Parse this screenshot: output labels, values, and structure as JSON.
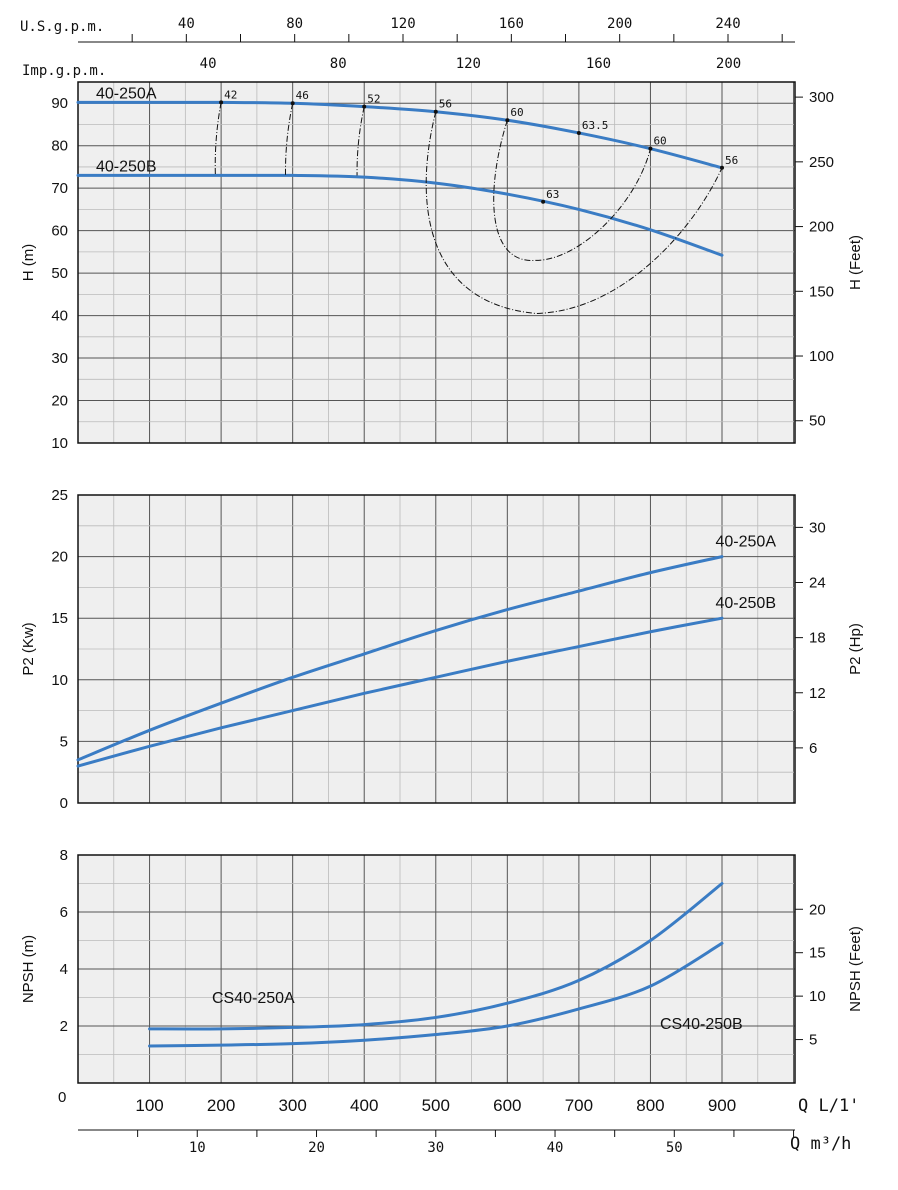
{
  "top_axes": {
    "usgpm": {
      "label": "U.S.g.p.m.",
      "ticks": [
        40,
        80,
        120,
        160,
        200,
        240
      ]
    },
    "impgpm": {
      "label": "Imp.g.p.m.",
      "ticks": [
        40,
        80,
        120,
        160,
        200
      ]
    }
  },
  "bottom_axes": {
    "ql": {
      "label": "Q L/1'",
      "origin_label": "0",
      "ticks": [
        100,
        200,
        300,
        400,
        500,
        600,
        700,
        800,
        900
      ]
    },
    "qm3h": {
      "label": "Q m³/h",
      "ticks": [
        10,
        20,
        30,
        40,
        50
      ]
    }
  },
  "colors": {
    "curve": "#3a7cc4",
    "grid_major": "#555555",
    "grid_minor": "#bbbbbb",
    "panel_bg": "#efefef"
  },
  "chart_data": [
    {
      "type": "line",
      "name": "head",
      "ylabel": "H (m)",
      "ylabel_right": "H (Feet)",
      "xlim": [
        0,
        1000
      ],
      "ylim": [
        10,
        95
      ],
      "yticks": [
        10,
        20,
        30,
        40,
        50,
        60,
        70,
        80,
        90
      ],
      "yticks_right": [
        50,
        100,
        150,
        200,
        250,
        300
      ],
      "series": [
        {
          "name": "40-250A",
          "x": [
            0,
            100,
            200,
            300,
            400,
            500,
            600,
            700,
            800,
            900
          ],
          "y": [
            90.2,
            90.2,
            90.2,
            90.0,
            89.2,
            88.0,
            86.0,
            83.0,
            79.3,
            74.8
          ]
        },
        {
          "name": "40-250B",
          "x": [
            0,
            100,
            200,
            300,
            400,
            500,
            600,
            700,
            800,
            900
          ],
          "y": [
            73.0,
            73.0,
            73.0,
            73.0,
            72.6,
            71.2,
            68.6,
            65.0,
            60.2,
            54.2
          ]
        }
      ],
      "efficiency_points": [
        {
          "label": "42",
          "x": 200,
          "y": 90.2
        },
        {
          "label": "46",
          "x": 300,
          "y": 90.0
        },
        {
          "label": "52",
          "x": 400,
          "y": 89.2
        },
        {
          "label": "56",
          "x": 500,
          "y": 88.0
        },
        {
          "label": "60",
          "x": 600,
          "y": 86.0
        },
        {
          "label": "63.5",
          "x": 700,
          "y": 83.0
        },
        {
          "label": "60",
          "x": 800,
          "y": 79.3
        },
        {
          "label": "56",
          "x": 900,
          "y": 74.8
        },
        {
          "label": "63",
          "x": 650,
          "y": 66.8
        }
      ]
    },
    {
      "type": "line",
      "name": "power",
      "ylabel": "P2 (Kw)",
      "ylabel_right": "P2 (Hp)",
      "xlim": [
        0,
        1000
      ],
      "ylim": [
        0,
        25
      ],
      "yticks": [
        0,
        5,
        10,
        15,
        20,
        25
      ],
      "yticks_right": [
        6,
        12,
        18,
        24,
        30
      ],
      "series": [
        {
          "name": "40-250A",
          "x": [
            0,
            100,
            200,
            300,
            400,
            500,
            600,
            700,
            800,
            900
          ],
          "y": [
            3.5,
            5.9,
            8.1,
            10.2,
            12.1,
            14.0,
            15.7,
            17.2,
            18.7,
            20.0
          ]
        },
        {
          "name": "40-250B",
          "x": [
            0,
            100,
            200,
            300,
            400,
            500,
            600,
            700,
            800,
            900
          ],
          "y": [
            3.0,
            4.6,
            6.1,
            7.5,
            8.9,
            10.2,
            11.5,
            12.7,
            13.9,
            15.0
          ]
        }
      ]
    },
    {
      "type": "line",
      "name": "npsh",
      "ylabel": "NPSH (m)",
      "ylabel_right": "NPSH (Feet)",
      "xlim": [
        0,
        1000
      ],
      "ylim": [
        0,
        8
      ],
      "yticks": [
        2,
        4,
        6,
        8
      ],
      "yticks_right": [
        5,
        10,
        15,
        20
      ],
      "series": [
        {
          "name": "CS40-250A",
          "x": [
            100,
            200,
            300,
            400,
            500,
            600,
            700,
            800,
            900
          ],
          "y": [
            1.9,
            1.9,
            1.95,
            2.05,
            2.3,
            2.8,
            3.6,
            5.0,
            7.0
          ]
        },
        {
          "name": "CS40-250B",
          "x": [
            100,
            200,
            300,
            400,
            500,
            600,
            700,
            800,
            900
          ],
          "y": [
            1.3,
            1.33,
            1.38,
            1.5,
            1.7,
            2.0,
            2.6,
            3.4,
            4.9
          ]
        }
      ]
    }
  ]
}
